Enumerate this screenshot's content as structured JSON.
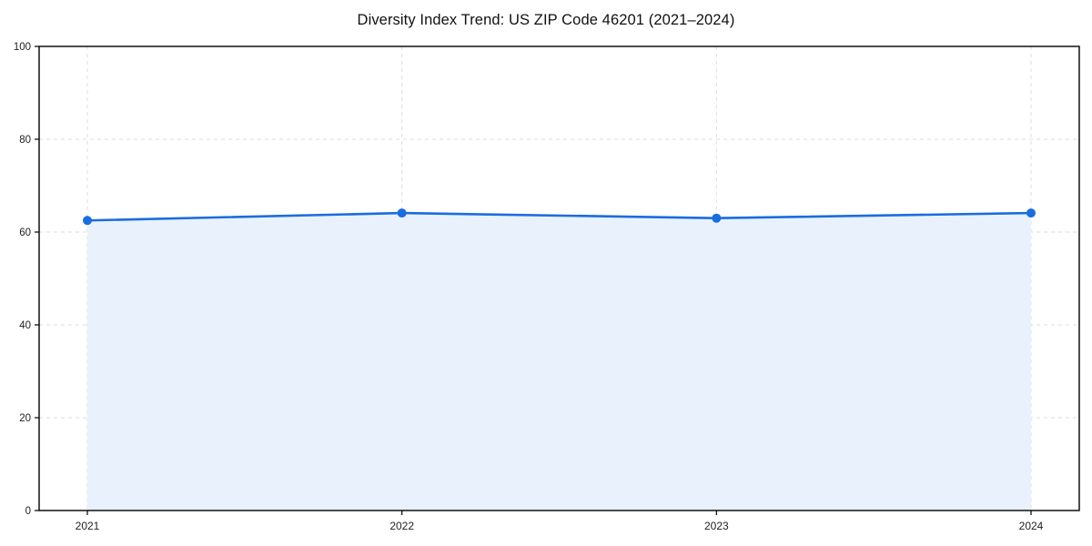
{
  "chart_data": {
    "type": "area",
    "title": "Diversity Index Trend: US ZIP Code 46201 (2021–2024)",
    "categories": [
      "2021",
      "2022",
      "2023",
      "2024"
    ],
    "series": [
      {
        "name": "Diversity Index",
        "values": [
          62.5,
          64.1,
          63.0,
          64.1
        ]
      }
    ],
    "xlabel": "",
    "ylabel": "",
    "ylim": [
      0,
      100
    ],
    "yticks": [
      0,
      20,
      40,
      60,
      80,
      100
    ],
    "grid": "dashed-both-axes",
    "legend_position": "none",
    "colors": {
      "line": "#1a6dde",
      "marker": "#1a6dde",
      "area_fill": "#e8f1fc",
      "grid": "#dddddd",
      "axis": "#000000",
      "title": "#111111",
      "tick_label": "#222222",
      "background": "#ffffff"
    }
  }
}
